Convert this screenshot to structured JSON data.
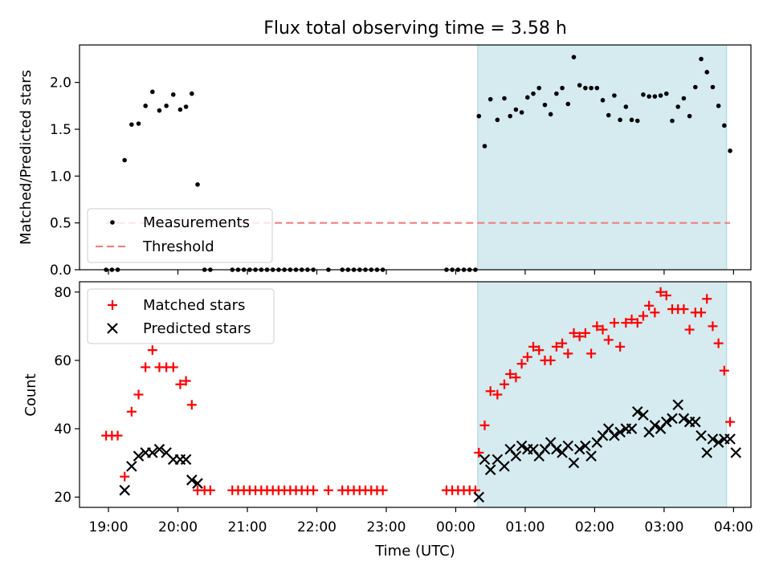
{
  "chart_data": [
    {
      "type": "scatter",
      "title": "Flux total observing time = 3.58 h",
      "ylabel": "Matched/Predicted stars",
      "ylim": [
        0,
        2.4
      ],
      "xlim": [
        "18:35",
        "04:15"
      ],
      "yticks": [
        "0.0",
        "0.5",
        "1.0",
        "1.5",
        "2.0"
      ],
      "threshold": 0.5,
      "shaded_interval": [
        "00:19",
        "03:54"
      ],
      "shade_color": "#d5ebf0",
      "legend_position": "lower-left",
      "legend": [
        {
          "label": "Measurements",
          "color": "#000000",
          "marker": "dot"
        },
        {
          "label": "Threshold",
          "color": "#f08080",
          "marker": "dashed-line"
        }
      ],
      "series": [
        {
          "name": "Measurements",
          "points": [
            [
              "18:58",
              0
            ],
            [
              "19:03",
              0
            ],
            [
              "19:08",
              0
            ],
            [
              "19:14",
              1.17
            ],
            [
              "19:20",
              1.55
            ],
            [
              "19:26",
              1.56
            ],
            [
              "19:32",
              1.75
            ],
            [
              "19:38",
              1.9
            ],
            [
              "19:44",
              1.7
            ],
            [
              "19:50",
              1.75
            ],
            [
              "19:56",
              1.87
            ],
            [
              "20:02",
              1.71
            ],
            [
              "20:07",
              1.74
            ],
            [
              "20:12",
              1.88
            ],
            [
              "20:17",
              0.91
            ],
            [
              "20:23",
              0
            ],
            [
              "20:28",
              0
            ],
            [
              "20:47",
              0
            ],
            [
              "20:52",
              0
            ],
            [
              "20:57",
              0
            ],
            [
              "21:02",
              0
            ],
            [
              "21:07",
              0
            ],
            [
              "21:12",
              0
            ],
            [
              "21:17",
              0
            ],
            [
              "21:22",
              0
            ],
            [
              "21:27",
              0
            ],
            [
              "21:32",
              0
            ],
            [
              "21:37",
              0
            ],
            [
              "21:42",
              0
            ],
            [
              "21:47",
              0
            ],
            [
              "21:52",
              0
            ],
            [
              "21:57",
              0
            ],
            [
              "22:10",
              0
            ],
            [
              "22:22",
              0
            ],
            [
              "22:27",
              0
            ],
            [
              "22:32",
              0
            ],
            [
              "22:37",
              0
            ],
            [
              "22:42",
              0
            ],
            [
              "22:47",
              0
            ],
            [
              "22:52",
              0
            ],
            [
              "22:57",
              0
            ],
            [
              "23:52",
              0
            ],
            [
              "23:57",
              0
            ],
            [
              "00:02",
              0
            ],
            [
              "00:07",
              0
            ],
            [
              "00:12",
              0
            ],
            [
              "00:17",
              0
            ],
            [
              "00:20",
              1.64
            ],
            [
              "00:25",
              1.32
            ],
            [
              "00:30",
              1.82
            ],
            [
              "00:36",
              1.6
            ],
            [
              "00:42",
              1.83
            ],
            [
              "00:47",
              1.64
            ],
            [
              "00:52",
              1.71
            ],
            [
              "00:57",
              1.68
            ],
            [
              "01:02",
              1.84
            ],
            [
              "01:07",
              1.88
            ],
            [
              "01:12",
              1.94
            ],
            [
              "01:17",
              1.76
            ],
            [
              "01:22",
              1.66
            ],
            [
              "01:27",
              1.88
            ],
            [
              "01:32",
              1.94
            ],
            [
              "01:37",
              1.77
            ],
            [
              "01:42",
              2.27
            ],
            [
              "01:47",
              1.97
            ],
            [
              "01:52",
              1.94
            ],
            [
              "01:57",
              1.94
            ],
            [
              "02:02",
              1.94
            ],
            [
              "02:07",
              1.81
            ],
            [
              "02:12",
              1.65
            ],
            [
              "02:17",
              1.86
            ],
            [
              "02:22",
              1.6
            ],
            [
              "02:27",
              1.74
            ],
            [
              "02:32",
              1.6
            ],
            [
              "02:37",
              1.59
            ],
            [
              "02:42",
              1.87
            ],
            [
              "02:47",
              1.85
            ],
            [
              "02:52",
              1.85
            ],
            [
              "02:57",
              1.86
            ],
            [
              "03:02",
              1.88
            ],
            [
              "03:07",
              1.59
            ],
            [
              "03:12",
              1.74
            ],
            [
              "03:17",
              1.83
            ],
            [
              "03:22",
              1.64
            ],
            [
              "03:27",
              1.95
            ],
            [
              "03:32",
              2.25
            ],
            [
              "03:37",
              2.11
            ],
            [
              "03:42",
              1.95
            ],
            [
              "03:47",
              1.75
            ],
            [
              "03:52",
              1.54
            ],
            [
              "03:57",
              1.27
            ]
          ]
        }
      ]
    },
    {
      "type": "scatter",
      "xlabel": "Time (UTC)",
      "ylabel": "Count",
      "ylim": [
        17,
        83
      ],
      "xlim": [
        "18:35",
        "04:15"
      ],
      "yticks": [
        "20",
        "40",
        "60",
        "80"
      ],
      "xticks": [
        "19:00",
        "20:00",
        "21:00",
        "22:00",
        "23:00",
        "00:00",
        "01:00",
        "02:00",
        "03:00",
        "04:00"
      ],
      "shaded_interval": [
        "00:19",
        "03:54"
      ],
      "shade_color": "#d5ebf0",
      "legend_position": "upper-left",
      "legend": [
        {
          "label": "Matched stars",
          "color": "#ff0000",
          "marker": "plus"
        },
        {
          "label": "Predicted stars",
          "color": "#000000",
          "marker": "x"
        }
      ],
      "series": [
        {
          "name": "Matched stars",
          "points": [
            [
              "18:58",
              38
            ],
            [
              "19:03",
              38
            ],
            [
              "19:08",
              38
            ],
            [
              "19:14",
              26
            ],
            [
              "19:20",
              45
            ],
            [
              "19:26",
              50
            ],
            [
              "19:32",
              58
            ],
            [
              "19:38",
              63
            ],
            [
              "19:44",
              58
            ],
            [
              "19:50",
              58
            ],
            [
              "19:56",
              58
            ],
            [
              "20:02",
              53
            ],
            [
              "20:07",
              54
            ],
            [
              "20:12",
              47
            ],
            [
              "20:17",
              22
            ],
            [
              "20:23",
              22
            ],
            [
              "20:28",
              22
            ],
            [
              "20:47",
              22
            ],
            [
              "20:52",
              22
            ],
            [
              "20:57",
              22
            ],
            [
              "21:02",
              22
            ],
            [
              "21:07",
              22
            ],
            [
              "21:12",
              22
            ],
            [
              "21:17",
              22
            ],
            [
              "21:22",
              22
            ],
            [
              "21:27",
              22
            ],
            [
              "21:32",
              22
            ],
            [
              "21:37",
              22
            ],
            [
              "21:42",
              22
            ],
            [
              "21:47",
              22
            ],
            [
              "21:52",
              22
            ],
            [
              "21:57",
              22
            ],
            [
              "22:10",
              22
            ],
            [
              "22:22",
              22
            ],
            [
              "22:27",
              22
            ],
            [
              "22:32",
              22
            ],
            [
              "22:37",
              22
            ],
            [
              "22:42",
              22
            ],
            [
              "22:47",
              22
            ],
            [
              "22:52",
              22
            ],
            [
              "22:57",
              22
            ],
            [
              "23:52",
              22
            ],
            [
              "23:57",
              22
            ],
            [
              "00:02",
              22
            ],
            [
              "00:07",
              22
            ],
            [
              "00:12",
              22
            ],
            [
              "00:17",
              22
            ],
            [
              "00:20",
              33
            ],
            [
              "00:25",
              41
            ],
            [
              "00:30",
              51
            ],
            [
              "00:36",
              50
            ],
            [
              "00:42",
              53
            ],
            [
              "00:47",
              56
            ],
            [
              "00:52",
              55
            ],
            [
              "00:57",
              59
            ],
            [
              "01:02",
              61
            ],
            [
              "01:07",
              64
            ],
            [
              "01:12",
              63
            ],
            [
              "01:17",
              60
            ],
            [
              "01:22",
              60
            ],
            [
              "01:27",
              64
            ],
            [
              "01:32",
              65
            ],
            [
              "01:37",
              62
            ],
            [
              "01:42",
              68
            ],
            [
              "01:47",
              67
            ],
            [
              "01:52",
              68
            ],
            [
              "01:57",
              62
            ],
            [
              "02:02",
              70
            ],
            [
              "02:07",
              69
            ],
            [
              "02:12",
              66
            ],
            [
              "02:17",
              71
            ],
            [
              "02:22",
              64
            ],
            [
              "02:27",
              71
            ],
            [
              "02:32",
              72
            ],
            [
              "02:37",
              71
            ],
            [
              "02:42",
              73
            ],
            [
              "02:47",
              76
            ],
            [
              "02:52",
              74
            ],
            [
              "02:57",
              80
            ],
            [
              "03:02",
              79
            ],
            [
              "03:07",
              75
            ],
            [
              "03:12",
              75
            ],
            [
              "03:17",
              75
            ],
            [
              "03:22",
              69
            ],
            [
              "03:27",
              74
            ],
            [
              "03:32",
              74
            ],
            [
              "03:37",
              78
            ],
            [
              "03:42",
              70
            ],
            [
              "03:47",
              65
            ],
            [
              "03:52",
              57
            ],
            [
              "03:57",
              42
            ]
          ]
        },
        {
          "name": "Predicted stars",
          "points": [
            [
              "19:14",
              22
            ],
            [
              "19:20",
              29
            ],
            [
              "19:26",
              32
            ],
            [
              "19:32",
              33
            ],
            [
              "19:38",
              33
            ],
            [
              "19:44",
              34
            ],
            [
              "19:50",
              33
            ],
            [
              "19:56",
              31
            ],
            [
              "20:02",
              31
            ],
            [
              "20:07",
              31
            ],
            [
              "20:12",
              25
            ],
            [
              "20:17",
              24
            ],
            [
              "00:20",
              20
            ],
            [
              "00:25",
              31
            ],
            [
              "00:30",
              28
            ],
            [
              "00:36",
              31
            ],
            [
              "00:42",
              29
            ],
            [
              "00:47",
              34
            ],
            [
              "00:52",
              32
            ],
            [
              "00:57",
              35
            ],
            [
              "01:02",
              34
            ],
            [
              "01:07",
              34
            ],
            [
              "01:12",
              32
            ],
            [
              "01:17",
              34
            ],
            [
              "01:22",
              36
            ],
            [
              "01:27",
              34
            ],
            [
              "01:32",
              33
            ],
            [
              "01:37",
              35
            ],
            [
              "01:42",
              30
            ],
            [
              "01:47",
              34
            ],
            [
              "01:52",
              35
            ],
            [
              "01:57",
              32
            ],
            [
              "02:02",
              36
            ],
            [
              "02:07",
              38
            ],
            [
              "02:12",
              40
            ],
            [
              "02:17",
              38
            ],
            [
              "02:22",
              39
            ],
            [
              "02:27",
              40
            ],
            [
              "02:32",
              40
            ],
            [
              "02:37",
              45
            ],
            [
              "02:42",
              44
            ],
            [
              "02:47",
              39
            ],
            [
              "02:52",
              41
            ],
            [
              "02:57",
              40
            ],
            [
              "03:02",
              42
            ],
            [
              "03:07",
              43
            ],
            [
              "03:12",
              47
            ],
            [
              "03:17",
              43
            ],
            [
              "03:22",
              42
            ],
            [
              "03:27",
              42
            ],
            [
              "03:32",
              38
            ],
            [
              "03:37",
              33
            ],
            [
              "03:42",
              37
            ],
            [
              "03:47",
              36
            ],
            [
              "03:52",
              37
            ],
            [
              "03:57",
              37
            ],
            [
              "04:02",
              33
            ]
          ]
        }
      ]
    }
  ]
}
